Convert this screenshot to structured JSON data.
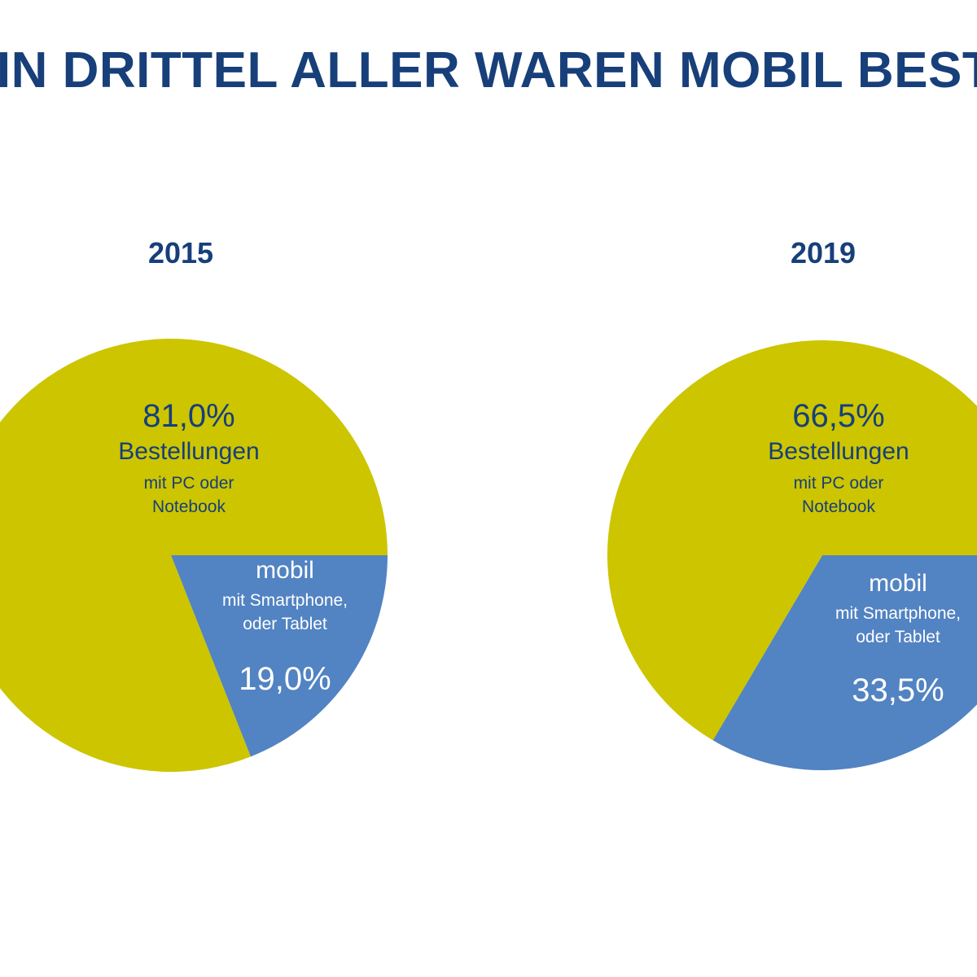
{
  "title": "EIN DRITTEL ALLER WAREN MOBIL BEST",
  "colors": {
    "title": "#173f7a",
    "pc_notebook": "#ccc500",
    "mobil": "#5283c2"
  },
  "chart_data": [
    {
      "type": "pie",
      "title": "2015",
      "slices": [
        {
          "label": "Bestellungen",
          "sublabel": [
            "mit PC oder",
            "Notebook"
          ],
          "value": 81.0,
          "display": "81,0%",
          "color": "#ccc500"
        },
        {
          "label": "mobil",
          "sublabel": [
            "mit Smartphone,",
            "oder Tablet"
          ],
          "value": 19.0,
          "display": "19,0%",
          "color": "#5283c2"
        }
      ]
    },
    {
      "type": "pie",
      "title": "2019",
      "slices": [
        {
          "label": "Bestellungen",
          "sublabel": [
            "mit PC oder",
            "Notebook"
          ],
          "value": 66.5,
          "display": "66,5%",
          "color": "#ccc500"
        },
        {
          "label": "mobil",
          "sublabel": [
            "mit Smartphone,",
            "oder Tablet"
          ],
          "value": 33.5,
          "display": "33,5%",
          "color": "#5283c2"
        }
      ]
    }
  ]
}
